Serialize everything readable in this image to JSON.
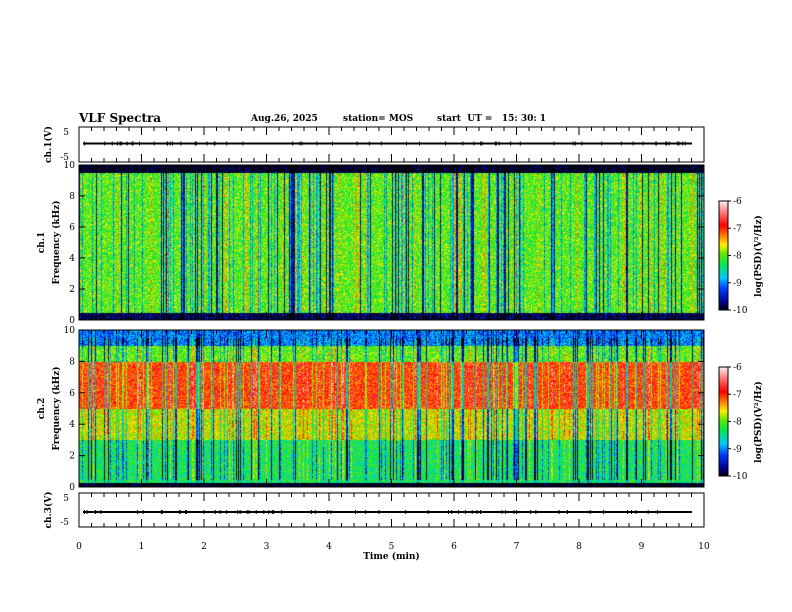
{
  "header": {
    "title": "VLF Spectra",
    "date": "Aug.26, 2025",
    "station": "station= MOS",
    "start": "start  UT =   15: 30: 1"
  },
  "chart_data": [
    {
      "type": "line",
      "name": "ch1-waveform",
      "ylabel": "ch.1(V)",
      "ylim": [
        -5,
        5
      ],
      "yticks": [
        "5",
        "-5"
      ],
      "xlim": [
        0,
        10
      ],
      "description_values": {
        "baseline": 0
      }
    },
    {
      "type": "heatmap",
      "name": "ch1-spectrogram",
      "ylabel": "ch.1\nFrequency (kHz)",
      "ylabel_ch": "ch.1",
      "ylabel_freq": "Frequency (kHz)",
      "ylim": [
        0,
        10
      ],
      "yticks": [
        "0",
        "2",
        "4",
        "6",
        "8",
        "10"
      ],
      "xlim": [
        0,
        10
      ],
      "colorbar": {
        "label": "log(PSD)(V²/Hz)",
        "range": [
          -10,
          -6
        ],
        "ticks": [
          "-6",
          "-7",
          "-8",
          "-9",
          "-10"
        ]
      },
      "band_profile_kHz": [
        [
          0,
          0.5,
          -9.8
        ],
        [
          0.5,
          9.5,
          -8
        ],
        [
          9.5,
          10,
          -10
        ]
      ]
    },
    {
      "type": "heatmap",
      "name": "ch2-spectrogram",
      "ylabel_ch": "ch.2",
      "ylabel_freq": "Frequency (kHz)",
      "ylim": [
        0,
        10
      ],
      "yticks": [
        "0",
        "2",
        "4",
        "6",
        "8",
        "10"
      ],
      "xlim": [
        0,
        10
      ],
      "colorbar": {
        "label": "log(PSD)(V²/Hz)",
        "range": [
          -10,
          -6
        ],
        "ticks": [
          "-6",
          "-7",
          "-8",
          "-9",
          "-10"
        ]
      },
      "band_profile_kHz": [
        [
          0,
          0.3,
          -10
        ],
        [
          0.3,
          3,
          -8.3
        ],
        [
          3,
          5,
          -7.7
        ],
        [
          5,
          8,
          -7
        ],
        [
          8,
          9,
          -8
        ],
        [
          9,
          10,
          -9
        ]
      ]
    },
    {
      "type": "line",
      "name": "ch3-waveform",
      "ylabel": "ch.3(V)",
      "ylim": [
        -5,
        5
      ],
      "yticks": [
        "5",
        "-5"
      ],
      "xlim": [
        0,
        10
      ],
      "description_values": {
        "baseline": 0
      }
    }
  ],
  "xaxis": {
    "label": "Time  (min)",
    "ticks": [
      "0",
      "1",
      "2",
      "3",
      "4",
      "5",
      "6",
      "7",
      "8",
      "9",
      "10"
    ]
  }
}
